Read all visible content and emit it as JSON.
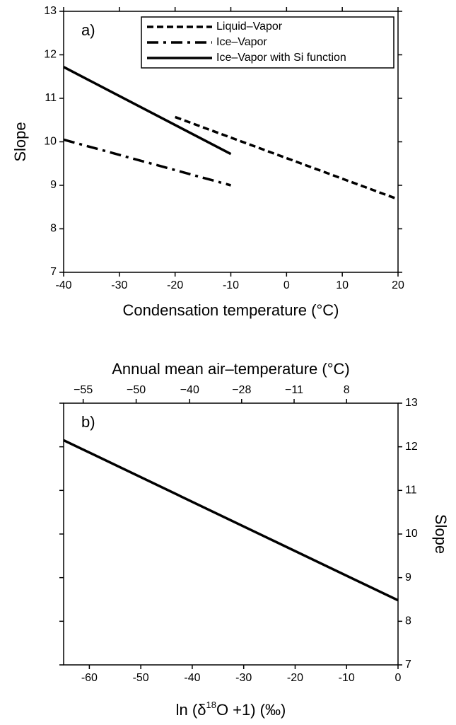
{
  "chart_data": [
    {
      "type": "line",
      "annotation": "a)",
      "xlabel": "Condensation temperature (°C)",
      "ylabel": "Slope",
      "xlim": [
        -40,
        20
      ],
      "xticks": [
        -40,
        -30,
        -20,
        -10,
        0,
        10,
        20
      ],
      "ylim": [
        7,
        13
      ],
      "yticks": [
        7,
        8,
        9,
        10,
        11,
        12,
        13
      ],
      "y_axis_side": "left",
      "legend": "top-right",
      "series": [
        {
          "name": "Liquid–Vapor",
          "color": "#000000",
          "dash": "dashed",
          "x": [
            -20,
            20
          ],
          "values": [
            10.57,
            8.68
          ]
        },
        {
          "name": "Ice–Vapor",
          "color": "#000000",
          "dash": "dashdot",
          "x": [
            -40,
            -10
          ],
          "values": [
            10.05,
            9.0
          ]
        },
        {
          "name": "Ice–Vapor with Si function",
          "color": "#000000",
          "dash": "solid",
          "x": [
            -40,
            -10
          ],
          "values": [
            11.72,
            9.72
          ]
        }
      ]
    },
    {
      "type": "line",
      "annotation": "b)",
      "xlabel_parts": [
        "ln (δ",
        "18",
        "O +1) (‰)"
      ],
      "ylabel": "Slope",
      "x2label": "Annual mean air–temperature (°C)",
      "xlim": [
        -65,
        0
      ],
      "xticks": [
        -60,
        -50,
        -40,
        -30,
        -20,
        -10,
        0
      ],
      "x2ticks": [
        {
          "value": -61.2,
          "label": "−55"
        },
        {
          "value": -50.9,
          "label": "−50"
        },
        {
          "value": -40.5,
          "label": "−40"
        },
        {
          "value": -30.4,
          "label": "−28"
        },
        {
          "value": -20.2,
          "label": "−11"
        },
        {
          "value": -10,
          "label": "8"
        }
      ],
      "ylim": [
        7,
        13
      ],
      "yticks": [
        7,
        8,
        9,
        10,
        11,
        12,
        13
      ],
      "y_axis_side": "right",
      "series": [
        {
          "name": null,
          "color": "#000000",
          "dash": "solid",
          "x": [
            -65,
            0
          ],
          "values": [
            12.15,
            8.48
          ]
        }
      ]
    }
  ]
}
